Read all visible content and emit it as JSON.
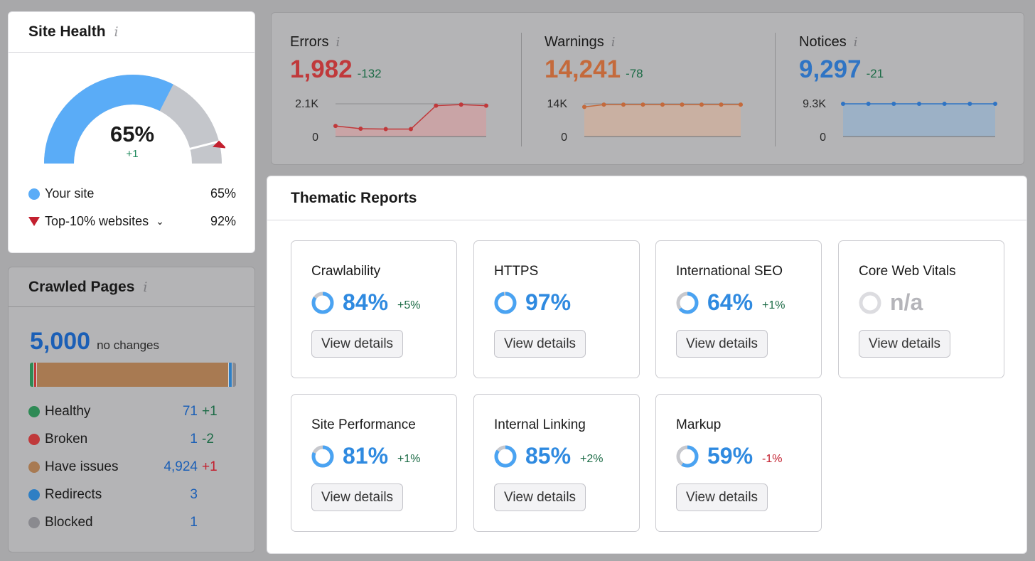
{
  "site_health": {
    "title": "Site Health",
    "info_glyph": "i",
    "score": "65%",
    "score_fraction": 0.65,
    "top10_fraction": 0.92,
    "delta": "+1",
    "legend": [
      {
        "label": "Your site",
        "value": "65%"
      },
      {
        "label": "Top-10% websites",
        "value": "92%",
        "dropdown_icon": "chevron-down-icon"
      }
    ],
    "colors": {
      "your_site": "#5aacf7",
      "track": "#c4c6cb",
      "top10_marker": "#c3202f"
    }
  },
  "crawled_pages": {
    "title": "Crawled Pages",
    "info_glyph": "i",
    "total": "5,000",
    "total_note": "no changes",
    "rows": [
      {
        "label": "Healthy",
        "count": "71",
        "change": "+1",
        "color": "#2e8a55",
        "change_color": "#1c6b46",
        "share": 71
      },
      {
        "label": "Broken",
        "count": "1",
        "change": "-2",
        "color": "#c0393b",
        "change_color": "#1c6b46",
        "share": 1
      },
      {
        "label": "Have issues",
        "count": "4,924",
        "change": "+1",
        "color": "#a87a52",
        "change_color": "#c3202f",
        "share": 4924
      },
      {
        "label": "Redirects",
        "count": "3",
        "change": "",
        "color": "#2f7fc4",
        "change_color": "#1c6b46",
        "share": 3
      },
      {
        "label": "Blocked",
        "count": "1",
        "change": "",
        "color": "#8a8a8f",
        "change_color": "#1c6b46",
        "share": 1
      }
    ]
  },
  "metrics": [
    {
      "label": "Errors",
      "value": "1,982",
      "delta": "-132",
      "color": "#c0393b",
      "fill": "#c9a4a6",
      "y_max_label": "2.1K",
      "y_min_label": "0",
      "y_max": 2100,
      "points": [
        680,
        500,
        480,
        480,
        1982,
        2050,
        1982
      ]
    },
    {
      "label": "Warnings",
      "value": "14,241",
      "delta": "-78",
      "color": "#c46a3c",
      "fill": "#c9b0a2",
      "y_max_label": "14K",
      "y_min_label": "0",
      "y_max": 14600,
      "points": [
        13200,
        14241,
        14241,
        14241,
        14241,
        14241,
        14241,
        14241,
        14241
      ]
    },
    {
      "label": "Notices",
      "value": "9,297",
      "delta": "-21",
      "color": "#2f74c4",
      "fill": "#9cb1c6",
      "y_max_label": "9.3K",
      "y_min_label": "0",
      "y_max": 9300,
      "points": [
        9297,
        9297,
        9297,
        9297,
        9297,
        9297,
        9297
      ]
    }
  ],
  "thematic_reports": {
    "title": "Thematic Reports",
    "button_label": "View details",
    "tiles": [
      {
        "name": "Crawlability",
        "score": "84%",
        "fraction": 0.84,
        "delta": "+5%",
        "delta_negative": false,
        "na": false
      },
      {
        "name": "HTTPS",
        "score": "97%",
        "fraction": 0.97,
        "delta": "",
        "delta_negative": false,
        "na": false
      },
      {
        "name": "International SEO",
        "score": "64%",
        "fraction": 0.64,
        "delta": "+1%",
        "delta_negative": false,
        "na": false
      },
      {
        "name": "Core Web Vitals",
        "score": "n/a",
        "fraction": 0,
        "delta": "",
        "delta_negative": false,
        "na": true
      },
      {
        "name": "Site Performance",
        "score": "81%",
        "fraction": 0.81,
        "delta": "+1%",
        "delta_negative": false,
        "na": false
      },
      {
        "name": "Internal Linking",
        "score": "85%",
        "fraction": 0.85,
        "delta": "+2%",
        "delta_negative": false,
        "na": false
      },
      {
        "name": "Markup",
        "score": "59%",
        "fraction": 0.59,
        "delta": "-1%",
        "delta_negative": true,
        "na": false
      }
    ],
    "colors": {
      "ring": "#4aa3f2",
      "ring_track": "#c7c8cd",
      "na_ring": "#dcdce0"
    }
  }
}
